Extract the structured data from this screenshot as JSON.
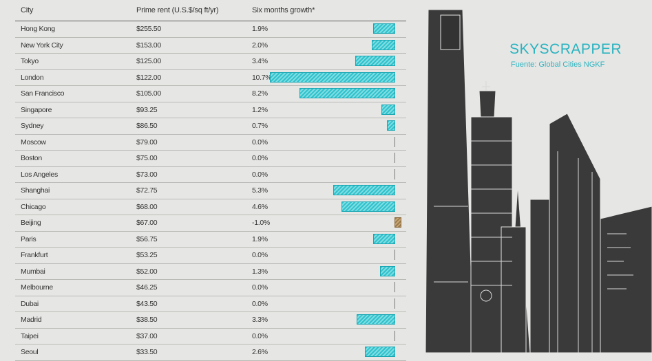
{
  "title": "SKYSCRAPPER",
  "source": "Fuente: Global Cities NGKF",
  "colors": {
    "accent": "#2ab4c0",
    "positive_bar": "#2fc2cd",
    "negative_bar": "#9a7b4f",
    "building": "#3a3a3a"
  },
  "chart_data": {
    "type": "bar",
    "headers": {
      "city": "City",
      "rent": "Prime rent (U.S.$/sq ft/yr)",
      "growth": "Six months growth*"
    },
    "rows": [
      {
        "city": "Hong Kong",
        "rent": "$255.50",
        "growth_label": "1.9%",
        "growth": 1.9
      },
      {
        "city": "New York City",
        "rent": "$153.00",
        "growth_label": "2.0%",
        "growth": 2.0
      },
      {
        "city": "Tokyo",
        "rent": "$125.00",
        "growth_label": "3.4%",
        "growth": 3.4
      },
      {
        "city": "London",
        "rent": "$122.00",
        "growth_label": "10.7%",
        "growth": 10.7
      },
      {
        "city": "San Francisco",
        "rent": "$105.00",
        "growth_label": "8.2%",
        "growth": 8.2
      },
      {
        "city": "Singapore",
        "rent": "$93.25",
        "growth_label": "1.2%",
        "growth": 1.2
      },
      {
        "city": "Sydney",
        "rent": "$86.50",
        "growth_label": "0.7%",
        "growth": 0.7
      },
      {
        "city": "Moscow",
        "rent": "$79.00",
        "growth_label": "0.0%",
        "growth": 0.0
      },
      {
        "city": "Boston",
        "rent": "$75.00",
        "growth_label": "0.0%",
        "growth": 0.0
      },
      {
        "city": "Los Angeles",
        "rent": "$73.00",
        "growth_label": "0.0%",
        "growth": 0.0
      },
      {
        "city": "Shanghai",
        "rent": "$72.75",
        "growth_label": "5.3%",
        "growth": 5.3
      },
      {
        "city": "Chicago",
        "rent": "$68.00",
        "growth_label": "4.6%",
        "growth": 4.6
      },
      {
        "city": "Beijing",
        "rent": "$67.00",
        "growth_label": "-1.0%",
        "growth": -1.0
      },
      {
        "city": "Paris",
        "rent": "$56.75",
        "growth_label": "1.9%",
        "growth": 1.9
      },
      {
        "city": "Frankfurt",
        "rent": "$53.25",
        "growth_label": "0.0%",
        "growth": 0.0
      },
      {
        "city": "Mumbai",
        "rent": "$52.00",
        "growth_label": "1.3%",
        "growth": 1.3
      },
      {
        "city": "Melbourne",
        "rent": "$46.25",
        "growth_label": "0.0%",
        "growth": 0.0
      },
      {
        "city": "Dubai",
        "rent": "$43.50",
        "growth_label": "0.0%",
        "growth": 0.0
      },
      {
        "city": "Madrid",
        "rent": "$38.50",
        "growth_label": "3.3%",
        "growth": 3.3
      },
      {
        "city": "Taipei",
        "rent": "$37.00",
        "growth_label": "0.0%",
        "growth": 0.0
      },
      {
        "city": "Seoul",
        "rent": "$33.50",
        "growth_label": "2.6%",
        "growth": 2.6
      }
    ],
    "growth_max": 10.7
  }
}
